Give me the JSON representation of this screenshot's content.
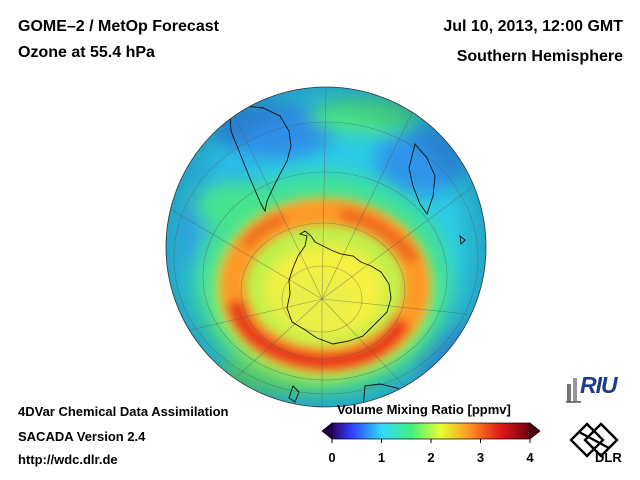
{
  "header": {
    "title_line1": "GOME–2 / MetOp Forecast",
    "title_line2": "Ozone at 55.4 hPa",
    "datetime": "Jul 10, 2013, 12:00 GMT",
    "region": "Southern Hemisphere"
  },
  "footer": {
    "line1": "4DVar Chemical Data Assimilation",
    "line2": "SACADA Version 2.4",
    "line3": "http://wdc.dlr.de"
  },
  "colorbar": {
    "title": "Volume Mixing Ratio [ppmv]",
    "ticks": [
      "0",
      "1",
      "2",
      "3",
      "4"
    ],
    "range": [
      0,
      4
    ],
    "colors": [
      "#2a006a",
      "#3050ff",
      "#30e0ff",
      "#40ff80",
      "#ffff30",
      "#ff8020",
      "#e01818",
      "#700010"
    ]
  },
  "logos": {
    "riu": "RIU",
    "dlr": "DLR"
  },
  "map": {
    "projection": "orthographic, south-polar view",
    "gridlines": true,
    "coastlines": true
  }
}
